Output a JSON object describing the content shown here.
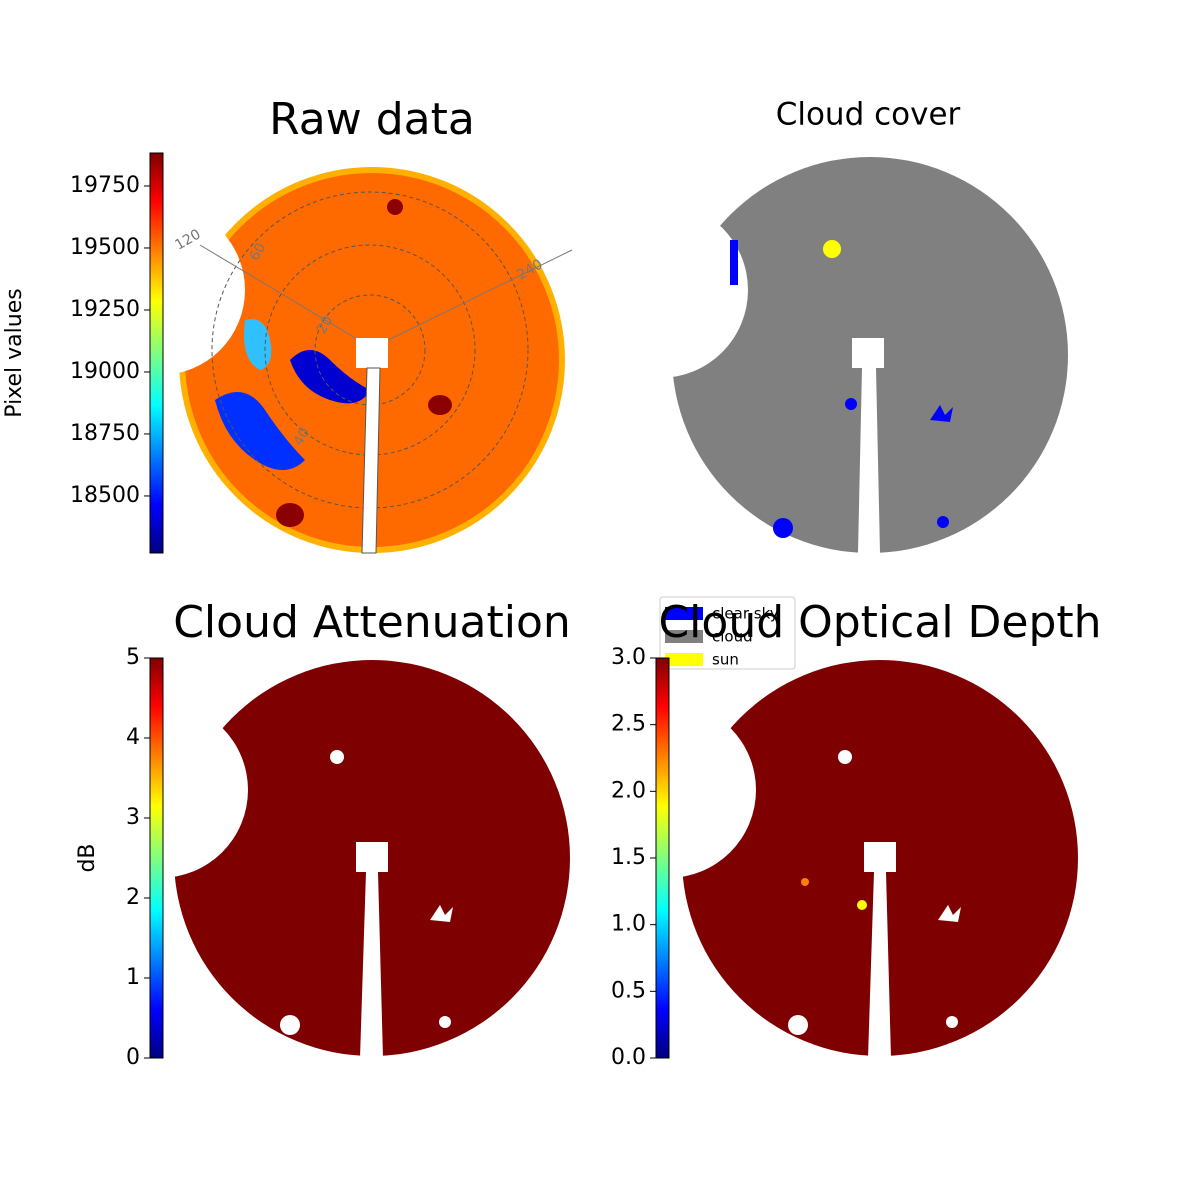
{
  "chart_data": [
    {
      "type": "image",
      "title": "Raw data",
      "colorbar_label": "Pixel values",
      "ylim": [
        18270,
        19883
      ],
      "yticks": [
        18500,
        18750,
        19000,
        19250,
        19500,
        19750
      ],
      "annotations": [
        "120",
        "60",
        "20",
        "240",
        "40"
      ]
    },
    {
      "type": "image",
      "title": "Cloud cover",
      "series": [
        {
          "name": "clear sky",
          "color": "#0000ff"
        },
        {
          "name": "cloud",
          "color": "#808080"
        },
        {
          "name": "sun",
          "color": "#ffff00"
        }
      ]
    },
    {
      "type": "image",
      "title": "Cloud Attenuation",
      "colorbar_label": "dB",
      "ylim": [
        0,
        5
      ],
      "yticks": [
        0,
        1,
        2,
        3,
        4,
        5
      ]
    },
    {
      "type": "image",
      "title": "Cloud Optical Depth",
      "ylim": [
        0,
        3
      ],
      "yticks": [
        {
          "value": 0,
          "label": "0.0"
        },
        0.5,
        {
          "value": 1,
          "label": "1.0"
        },
        1.5,
        {
          "value": 2,
          "label": "2.0"
        },
        2.5,
        {
          "value": 3,
          "label": "3.0"
        }
      ]
    }
  ]
}
